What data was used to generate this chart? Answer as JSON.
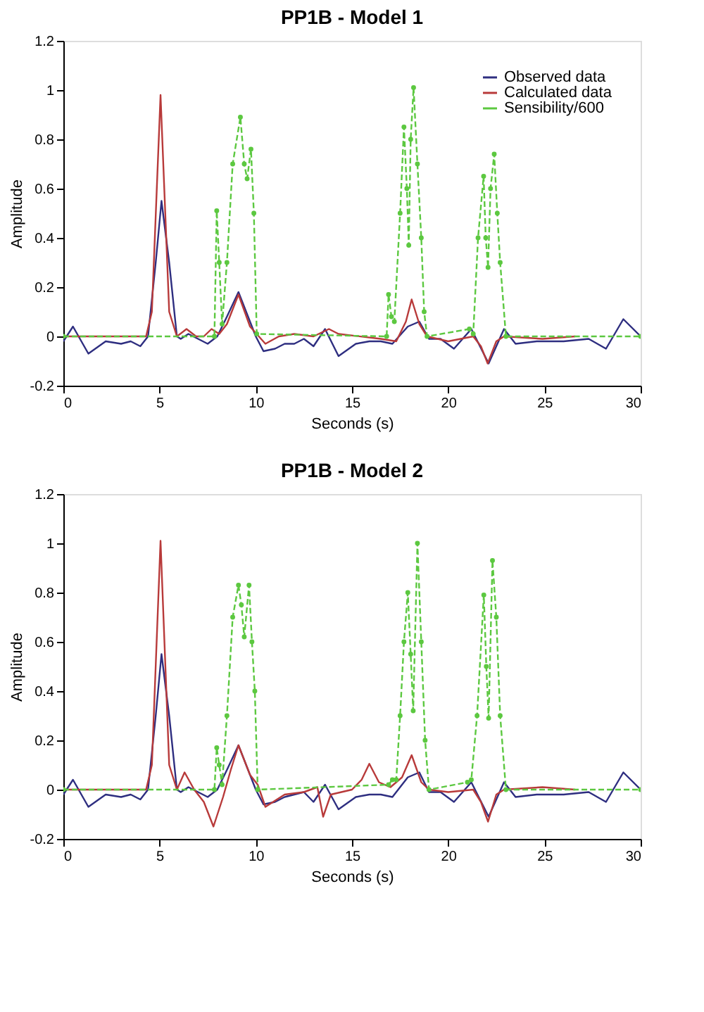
{
  "chart_data": [
    {
      "type": "line",
      "title": "PP1B - Model 1",
      "xlabel": "Seconds (s)",
      "ylabel": "Amplitude",
      "xlim": [
        0,
        30
      ],
      "ylim": [
        -0.2,
        1.2
      ],
      "xticks": [
        0,
        5,
        10,
        15,
        20,
        25,
        30
      ],
      "yticks": [
        -0.2,
        0,
        0.2,
        0.4,
        0.6,
        0.8,
        1,
        1.2
      ],
      "grid": false,
      "legend": "top right",
      "series": [
        {
          "name": "Observed data",
          "color": "#2e2e80",
          "line_style": "solid",
          "x": [
            0,
            0.5,
            1.3,
            2.2,
            3,
            3.5,
            4.0,
            4.4,
            4.8,
            5.1,
            5.5,
            5.9,
            6.1,
            6.5,
            7.0,
            7.5,
            8.0,
            8.5,
            9.1,
            9.6,
            10.0,
            10.4,
            11.0,
            11.5,
            12.0,
            12.5,
            13.0,
            13.6,
            14.3,
            15.2,
            15.9,
            16.5,
            17.1,
            17.9,
            18.5,
            19.0,
            19.6,
            20.3,
            21.2,
            22.1,
            22.9,
            23.5,
            24.6,
            26.0,
            27.3,
            28.2,
            29.1,
            30
          ],
          "values": [
            -0.02,
            0.04,
            -0.07,
            -0.02,
            -0.03,
            -0.02,
            -0.04,
            0.0,
            0.3,
            0.55,
            0.3,
            0.0,
            -0.01,
            0.01,
            -0.01,
            -0.03,
            0.0,
            0.08,
            0.18,
            0.08,
            0.0,
            -0.06,
            -0.05,
            -0.03,
            -0.03,
            -0.01,
            -0.04,
            0.03,
            -0.08,
            -0.03,
            -0.02,
            -0.02,
            -0.03,
            0.04,
            0.06,
            -0.01,
            -0.01,
            -0.05,
            0.03,
            -0.11,
            0.03,
            -0.03,
            -0.02,
            -0.02,
            -0.01,
            -0.05,
            0.07,
            0.0
          ]
        },
        {
          "name": "Calculated data",
          "color": "#b83a3a",
          "line_style": "solid",
          "x": [
            0,
            4.3,
            4.6,
            5.05,
            5.5,
            5.9,
            6.4,
            6.9,
            7.3,
            7.7,
            8.1,
            8.5,
            9.1,
            9.7,
            10.5,
            11.2,
            12,
            13,
            13.8,
            14.3,
            16.5,
            17.3,
            17.8,
            18.1,
            18.5,
            18.9,
            20.0,
            21.3,
            21.7,
            22.05,
            22.5,
            22.9,
            24.9,
            26.6
          ],
          "values": [
            0,
            0,
            0.1,
            0.98,
            0.1,
            0,
            0.03,
            0,
            0,
            0.03,
            0.01,
            0.05,
            0.17,
            0.04,
            -0.03,
            0,
            0.01,
            0,
            0.03,
            0.01,
            -0.01,
            -0.02,
            0.06,
            0.15,
            0.05,
            0,
            -0.02,
            0,
            -0.04,
            -0.11,
            -0.02,
            0.0,
            -0.01,
            0
          ]
        },
        {
          "name": "Sensibility/600",
          "color": "#5cc840",
          "line_style": "dashed",
          "marker": "circle",
          "x": [
            0,
            7.85,
            7.97,
            8.1,
            8.25,
            8.5,
            8.8,
            9.2,
            9.4,
            9.55,
            9.75,
            9.9,
            10.05,
            16.8,
            16.9,
            17.05,
            17.2,
            17.5,
            17.7,
            17.85,
            17.95,
            18.05,
            18.2,
            18.4,
            18.6,
            18.75,
            18.9,
            21.1,
            21.3,
            21.55,
            21.84,
            21.95,
            22.07,
            22.2,
            22.39,
            22.55,
            22.7,
            23.0,
            30
          ],
          "values": [
            0,
            0,
            0.51,
            0.3,
            0.05,
            0.3,
            0.7,
            0.89,
            0.7,
            0.64,
            0.76,
            0.5,
            0.01,
            0,
            0.17,
            0.08,
            0.06,
            0.5,
            0.85,
            0.6,
            0.37,
            0.8,
            1.01,
            0.7,
            0.4,
            0.1,
            0,
            0.03,
            0.01,
            0.4,
            0.65,
            0.4,
            0.28,
            0.6,
            0.74,
            0.5,
            0.3,
            0,
            0
          ]
        }
      ]
    },
    {
      "type": "line",
      "title": "PP1B - Model 2",
      "xlabel": "Seconds (s)",
      "ylabel": "Amplitude",
      "xlim": [
        0,
        30
      ],
      "ylim": [
        -0.2,
        1.2
      ],
      "xticks": [
        0,
        5,
        10,
        15,
        20,
        25,
        30
      ],
      "yticks": [
        -0.2,
        0,
        0.2,
        0.4,
        0.6,
        0.8,
        1,
        1.2
      ],
      "grid": false,
      "legend": "top right",
      "series": [
        {
          "name": "Observed data",
          "color": "#2e2e80",
          "line_style": "solid",
          "x": [
            0,
            0.5,
            1.3,
            2.2,
            3,
            3.5,
            4.0,
            4.4,
            4.8,
            5.1,
            5.5,
            5.9,
            6.1,
            6.5,
            7.0,
            7.5,
            8.0,
            8.5,
            9.1,
            9.6,
            10.0,
            10.4,
            11.0,
            11.5,
            12.0,
            12.5,
            13.0,
            13.6,
            14.3,
            15.2,
            15.9,
            16.5,
            17.1,
            17.9,
            18.5,
            19.0,
            19.6,
            20.3,
            21.2,
            22.1,
            22.9,
            23.5,
            24.6,
            26.0,
            27.3,
            28.2,
            29.1,
            30
          ],
          "values": [
            -0.02,
            0.04,
            -0.07,
            -0.02,
            -0.03,
            -0.02,
            -0.04,
            0.0,
            0.3,
            0.55,
            0.3,
            0.0,
            -0.01,
            0.01,
            -0.01,
            -0.03,
            0.0,
            0.08,
            0.18,
            0.08,
            0.0,
            -0.06,
            -0.05,
            -0.03,
            -0.02,
            -0.01,
            -0.05,
            0.02,
            -0.08,
            -0.03,
            -0.02,
            -0.02,
            -0.03,
            0.05,
            0.07,
            -0.01,
            -0.01,
            -0.05,
            0.03,
            -0.11,
            0.03,
            -0.03,
            -0.02,
            -0.02,
            -0.01,
            -0.05,
            0.07,
            0.0
          ]
        },
        {
          "name": "Calculated data",
          "color": "#b83a3a",
          "line_style": "solid",
          "x": [
            0,
            4.3,
            4.6,
            5.05,
            5.5,
            5.9,
            6.3,
            6.8,
            7.3,
            7.8,
            8.3,
            8.7,
            9.1,
            9.7,
            10.1,
            10.5,
            11.5,
            12.5,
            13.2,
            13.5,
            13.9,
            15.0,
            15.5,
            15.9,
            16.4,
            17.0,
            17.6,
            18.1,
            18.6,
            19.0,
            20.0,
            21.3,
            21.7,
            22.07,
            22.5,
            22.9,
            24.9,
            26.6
          ],
          "values": [
            0,
            0,
            0.1,
            1.01,
            0.1,
            0,
            0.07,
            0,
            -0.05,
            -0.15,
            -0.03,
            0.08,
            0.18,
            0.06,
            0.02,
            -0.07,
            -0.02,
            -0.01,
            0.01,
            -0.11,
            -0.02,
            0,
            0.04,
            0.105,
            0.03,
            0.01,
            0.05,
            0.14,
            0.03,
            0,
            -0.01,
            0,
            -0.05,
            -0.13,
            -0.02,
            0.0,
            0.01,
            0
          ]
        },
        {
          "name": "Sensibility/600",
          "color": "#5cc840",
          "line_style": "dashed",
          "marker": "circle",
          "x": [
            0,
            7.85,
            7.97,
            8.1,
            8.25,
            8.5,
            8.8,
            9.1,
            9.25,
            9.4,
            9.65,
            9.8,
            9.95,
            10.1,
            16.9,
            17.1,
            17.3,
            17.5,
            17.7,
            17.9,
            18.05,
            18.18,
            18.4,
            18.6,
            18.8,
            19.0,
            21.0,
            21.2,
            21.5,
            21.85,
            21.98,
            22.1,
            22.3,
            22.5,
            22.7,
            23.0,
            30
          ],
          "values": [
            0,
            0,
            0.17,
            0.1,
            0.02,
            0.3,
            0.7,
            0.83,
            0.75,
            0.62,
            0.83,
            0.6,
            0.4,
            0,
            0.02,
            0.04,
            0.04,
            0.3,
            0.6,
            0.8,
            0.55,
            0.32,
            1.0,
            0.6,
            0.2,
            0,
            0.03,
            0.04,
            0.3,
            0.79,
            0.5,
            0.29,
            0.93,
            0.7,
            0.3,
            0,
            0
          ]
        }
      ]
    }
  ]
}
